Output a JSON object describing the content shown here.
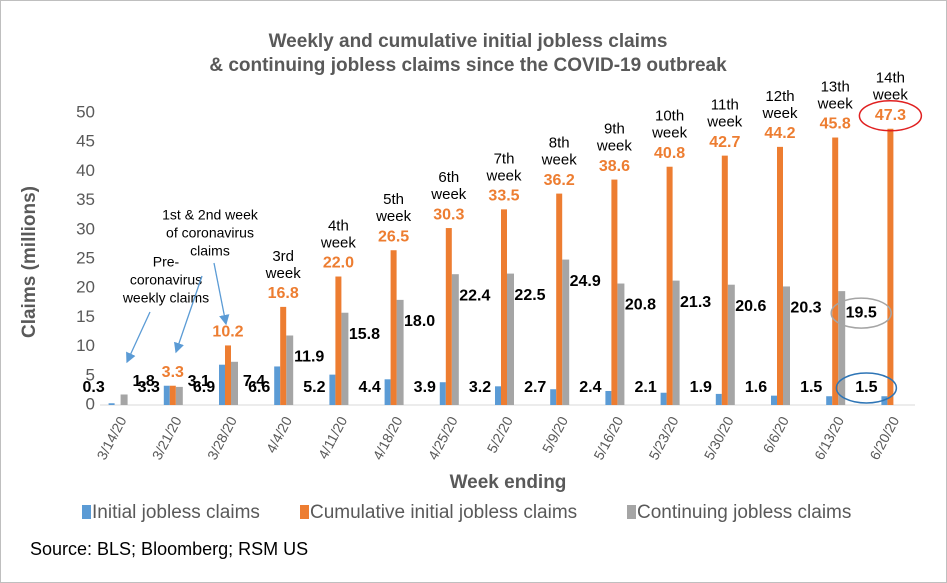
{
  "chart_data": {
    "type": "bar",
    "title": [
      "Weekly and cumulative initial jobless claims",
      "& continuing jobless claims since the COVID-19 outbreak"
    ],
    "y_label": "Claims (millions)",
    "x_label": "Week ending",
    "source": "Source: BLS; Bloomberg; RSM US",
    "categories": [
      "3/14/20",
      "3/21/20",
      "3/28/20",
      "4/4/20",
      "4/11/20",
      "4/18/20",
      "4/25/20",
      "5/2/20",
      "5/9/20",
      "5/16/20",
      "5/23/20",
      "5/30/20",
      "6/6/20",
      "6/13/20",
      "6/20/20"
    ],
    "series": [
      {
        "name": "Initial jobless claims",
        "color": "#5b9bd5",
        "values": [
          0.3,
          3.3,
          6.9,
          6.6,
          5.2,
          4.4,
          3.9,
          3.2,
          2.7,
          2.4,
          2.1,
          1.9,
          1.6,
          1.5,
          1.5
        ],
        "value_labels": [
          "0.3",
          "3.3",
          "6.9",
          "6.6",
          "5.2",
          "4.4",
          "3.9",
          "3.2",
          "2.7",
          "2.4",
          "2.1",
          "1.9",
          "1.6",
          "1.5",
          "1.5"
        ]
      },
      {
        "name": "Cumulative initial jobless claims",
        "color": "#ed7d31",
        "values": [
          null,
          3.3,
          10.2,
          16.8,
          22,
          26.5,
          30.3,
          33.5,
          36.2,
          38.6,
          40.8,
          42.7,
          44.2,
          45.8,
          47.3
        ],
        "value_labels": [
          null,
          "3.3",
          "10.2",
          "16.8",
          "22.0",
          "26.5",
          "30.3",
          "33.5",
          "36.2",
          "38.6",
          "40.8",
          "42.7",
          "44.2",
          "45.8",
          "47.3"
        ]
      },
      {
        "name": "Continuing jobless claims",
        "color": "#a5a5a5",
        "values": [
          1.8,
          3.1,
          7.4,
          11.9,
          15.8,
          18,
          22.4,
          22.5,
          24.9,
          20.8,
          21.3,
          20.6,
          20.3,
          19.5,
          null
        ],
        "value_labels": [
          "1.8",
          "3.1",
          "7.4",
          "11.9",
          "15.8",
          "18.0",
          "22.4",
          "22.5",
          "24.9",
          "20.8",
          "21.3",
          "20.6",
          "20.3",
          "19.5",
          null
        ]
      }
    ],
    "week_labels": [
      null,
      null,
      null,
      [
        "3rd",
        "week"
      ],
      [
        "4th",
        "week"
      ],
      [
        "5th",
        "week"
      ],
      [
        "6th",
        "week"
      ],
      [
        "7th",
        "week"
      ],
      [
        "8th",
        "week"
      ],
      [
        "9th",
        "week"
      ],
      [
        "10th",
        "week"
      ],
      [
        "11th",
        "week"
      ],
      [
        "12th",
        "week"
      ],
      [
        "13th",
        "week"
      ],
      [
        "14th",
        "week"
      ]
    ],
    "annotations": [
      {
        "lines": [
          "1st & 2nd week",
          "of coronavirus",
          "claims"
        ]
      },
      {
        "lines": [
          "Pre-",
          "coronavirus",
          "weekly claims"
        ]
      }
    ],
    "ylim": [
      0,
      50
    ],
    "yticks": [
      0,
      5,
      10,
      15,
      20,
      25,
      30,
      35,
      40,
      45,
      50
    ],
    "grid": false,
    "legend": "bottom"
  }
}
